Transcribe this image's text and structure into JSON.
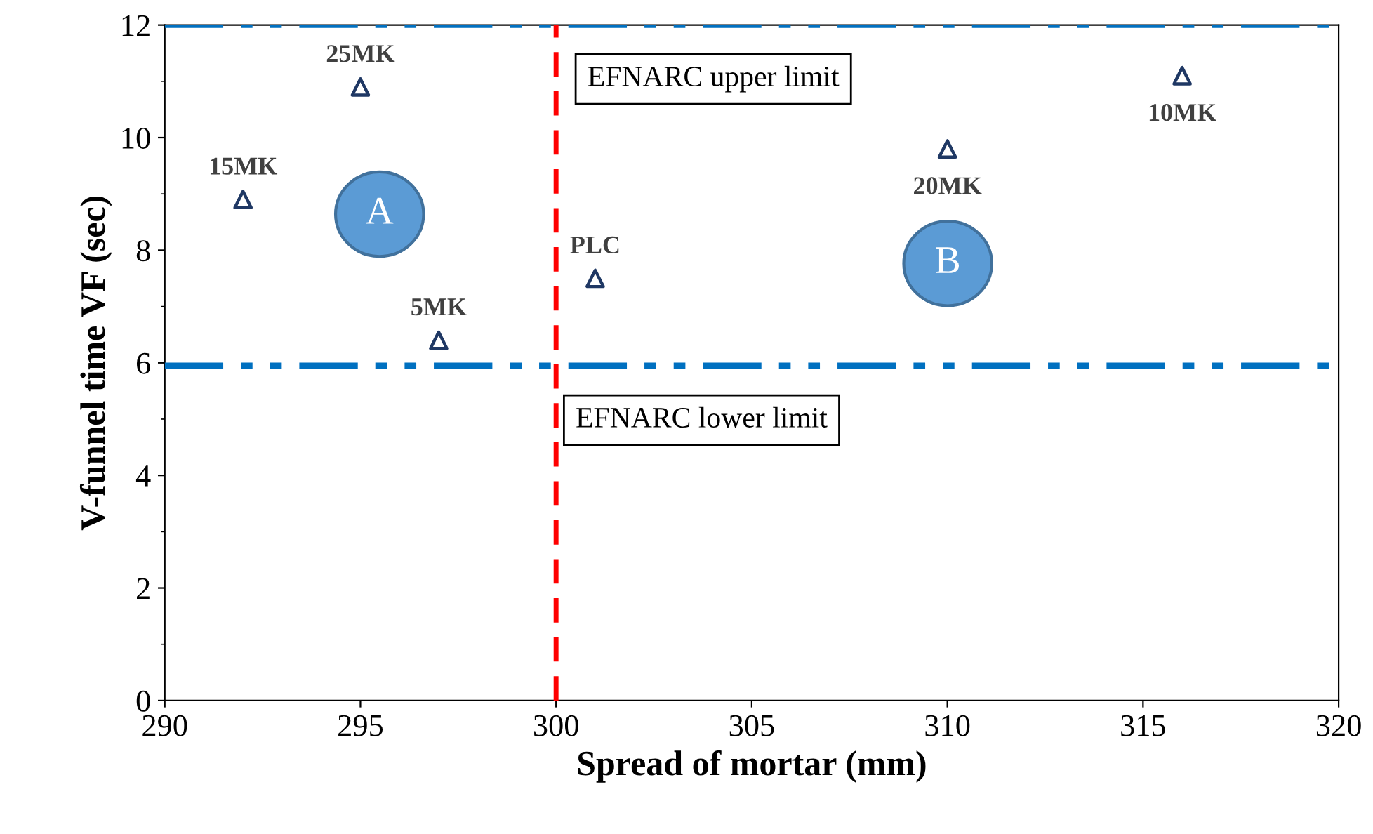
{
  "chart_data": {
    "type": "scatter",
    "xlabel": "Spread of mortar (mm)",
    "ylabel": "V-funnel time VF (sec)",
    "x": [
      292,
      295,
      297,
      301,
      310,
      316
    ],
    "series": [
      {
        "color": "#1f3864",
        "values": [
          8.9,
          10.9,
          6.4,
          7.5,
          9.8,
          11.1
        ]
      }
    ],
    "marker": "triangle",
    "xlim": [
      290,
      320
    ],
    "xticks": [
      290,
      295,
      300,
      305,
      310,
      315,
      320
    ],
    "ylim": [
      0,
      12
    ],
    "yticks": [
      0,
      2,
      4,
      6,
      8,
      10,
      12
    ],
    "grid": false,
    "legend": false,
    "ref_lines": [
      {
        "axis": "y",
        "value": 12,
        "label": "EFNARC upper limit",
        "color": "#0070c0",
        "line_style": "dashdotdot"
      },
      {
        "axis": "y",
        "value": 5.95,
        "label": "EFNARC lower limit",
        "color": "#0070c0",
        "line_style": "dashdotdot"
      },
      {
        "axis": "x",
        "value": 300,
        "color": "#ff0000",
        "line_style": "dashed"
      }
    ],
    "annotations": [
      "A",
      "B",
      {
        "text": "15MK",
        "x": 292,
        "y": 8.9
      },
      {
        "text": "25MK",
        "x": 295,
        "y": 10.9
      },
      {
        "text": "5MK",
        "x": 297,
        "y": 6.4
      },
      {
        "text": "PLC",
        "x": 301,
        "y": 7.5
      },
      {
        "text": "20MK",
        "x": 310,
        "y": 9.8
      },
      {
        "text": "10MK",
        "x": 316,
        "y": 11.1
      }
    ]
  }
}
